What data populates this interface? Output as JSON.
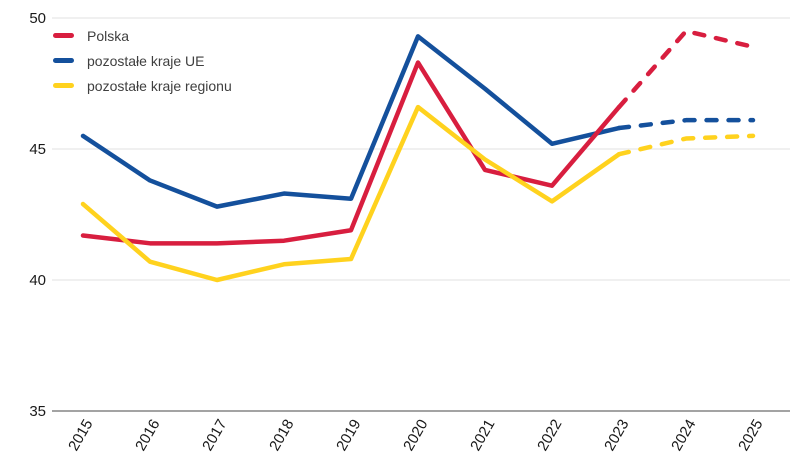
{
  "chart_data": {
    "type": "line",
    "title": "",
    "xlabel": "",
    "ylabel": "",
    "x": [
      2015,
      2016,
      2017,
      2018,
      2019,
      2020,
      2021,
      2022,
      2023,
      2024,
      2025
    ],
    "series": [
      {
        "name": "Polska",
        "color": "#d81e3f",
        "values": [
          41.7,
          41.4,
          41.4,
          41.5,
          41.9,
          48.3,
          44.2,
          43.6,
          46.6,
          49.5,
          48.9
        ],
        "dashed_from": 2023
      },
      {
        "name": "pozostałe kraje UE",
        "color": "#14509c",
        "values": [
          45.5,
          43.8,
          42.8,
          43.3,
          43.1,
          49.3,
          47.3,
          45.2,
          45.8,
          46.1,
          46.1
        ],
        "dashed_from": 2023
      },
      {
        "name": "pozostałe kraje regionu",
        "color": "#ffd21e",
        "values": [
          42.9,
          40.7,
          40.0,
          40.6,
          40.8,
          46.6,
          44.6,
          43.0,
          44.8,
          45.4,
          45.5
        ],
        "dashed_from": 2023
      }
    ],
    "ylim": [
      35,
      50
    ],
    "yticks": [
      35,
      40,
      45,
      50
    ],
    "grid": "horizontal-major-only",
    "legend_position": "top-left"
  },
  "colors": {
    "grid": "#e7e7e7",
    "axis": "#a3a3a3",
    "tick_text": "#1a1a1a",
    "legend_text": "#3f3f3f",
    "background": "#ffffff"
  }
}
